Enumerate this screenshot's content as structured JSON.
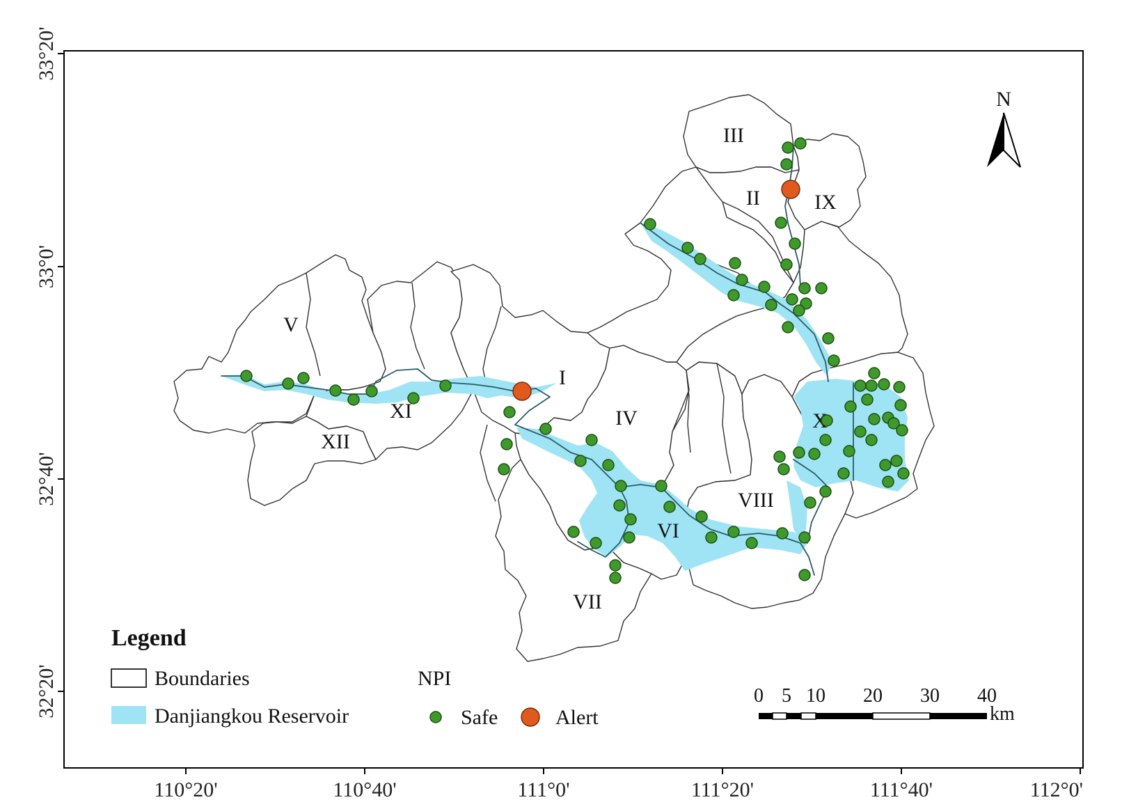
{
  "lon_ticks": [
    "110°20'",
    "110°40'",
    "111°0'",
    "111°20'",
    "111°40'",
    "112°0'"
  ],
  "lat_ticks": [
    "33°20'",
    "33°0'",
    "32°40'",
    "32°20'"
  ],
  "north_label": "N",
  "regions": [
    "I",
    "II",
    "III",
    "IV",
    "V",
    "VI",
    "VII",
    "VIII",
    "IX",
    "X",
    "XI",
    "XII"
  ],
  "legend": {
    "title": "Legend",
    "boundaries": "Boundaries",
    "reservoir": "Danjiangkou Reservoir",
    "npi_title": "NPI",
    "safe": "Safe",
    "alert": "Alert"
  },
  "scale_bar": {
    "labels": [
      "0",
      "5",
      "10",
      "20",
      "30",
      "40"
    ],
    "unit": "km"
  },
  "colors": {
    "safe": "#3e9a2a",
    "alert": "#e05a1e",
    "reservoir": "#9fe4f4",
    "boundary": "#333333"
  },
  "points": {
    "safe_count": 80,
    "alert_count": 2
  }
}
